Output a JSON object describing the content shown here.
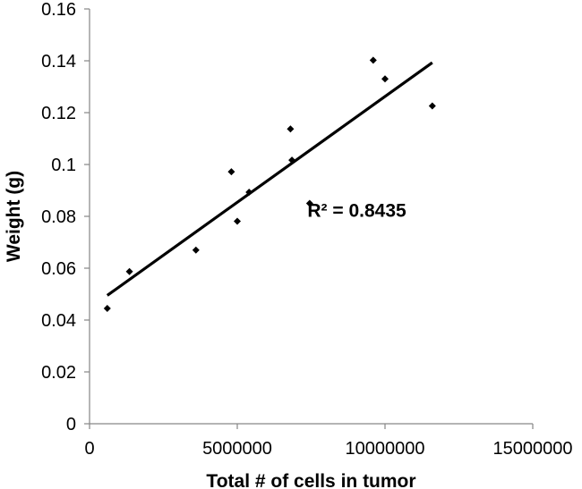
{
  "chart_data": {
    "type": "scatter",
    "title": "",
    "xlabel": "Total # of cells in tumor",
    "ylabel": "Weight (g)",
    "xlim": [
      0,
      15000000
    ],
    "ylim": [
      0,
      0.16
    ],
    "x_ticks": [
      0,
      5000000,
      10000000,
      15000000
    ],
    "y_ticks": [
      0,
      0.02,
      0.04,
      0.06,
      0.08,
      0.1,
      0.12,
      0.14,
      0.16
    ],
    "x_tick_labels": [
      "0",
      "5000000",
      "10000000",
      "15000000"
    ],
    "y_tick_labels": [
      "0",
      "0.02",
      "0.04",
      "0.06",
      "0.08",
      "0.1",
      "0.12",
      "0.14",
      "0.16"
    ],
    "grid": false,
    "legend": "none",
    "marker_color": "#000000",
    "series": [
      {
        "points": [
          {
            "x": 600000,
            "y": 0.0445
          },
          {
            "x": 1350000,
            "y": 0.0587
          },
          {
            "x": 3600000,
            "y": 0.067
          },
          {
            "x": 4800000,
            "y": 0.0972
          },
          {
            "x": 5000000,
            "y": 0.0781
          },
          {
            "x": 5400000,
            "y": 0.0893
          },
          {
            "x": 6800000,
            "y": 0.1137
          },
          {
            "x": 6850000,
            "y": 0.1017
          },
          {
            "x": 7450000,
            "y": 0.085
          },
          {
            "x": 9600000,
            "y": 0.1402
          },
          {
            "x": 10000000,
            "y": 0.133
          },
          {
            "x": 11600000,
            "y": 0.1226
          }
        ]
      }
    ],
    "trendline": {
      "type": "linear",
      "start": {
        "x": 600000,
        "y": 0.0495
      },
      "end": {
        "x": 11600000,
        "y": 0.1393
      },
      "color": "#000000"
    },
    "annotation": {
      "text": "R² = 0.8435",
      "x": 9800000,
      "y": 0.0822
    }
  }
}
